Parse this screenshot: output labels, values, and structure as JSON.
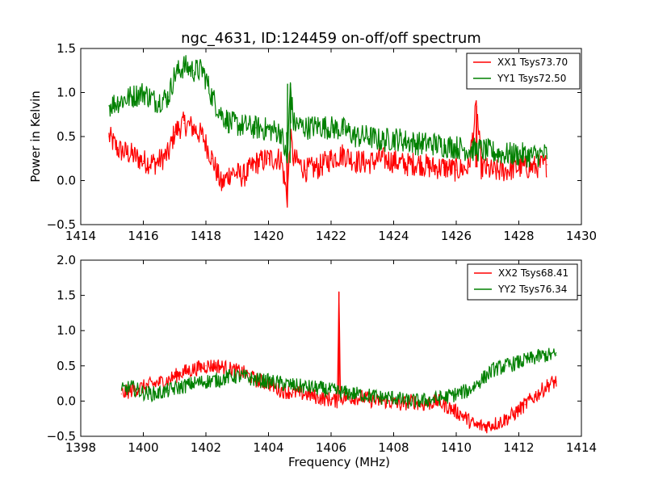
{
  "figure": {
    "title": "ngc_4631, ID:124459 on-off/off spectrum"
  },
  "chart_data": [
    {
      "type": "line",
      "title": "ngc_4631, ID:124459 on-off/off spectrum",
      "xlabel": "",
      "ylabel": "Power in Kelvin",
      "xlim": [
        1414,
        1430
      ],
      "ylim": [
        -0.5,
        1.5
      ],
      "xticks": [
        1414,
        1416,
        1418,
        1420,
        1422,
        1424,
        1426,
        1428,
        1430
      ],
      "yticks": [
        -0.5,
        0.0,
        0.5,
        1.0,
        1.5
      ],
      "xtick_labels": [
        "1414",
        "1416",
        "1418",
        "1420",
        "1422",
        "1424",
        "1426",
        "1428",
        "1430"
      ],
      "ytick_labels": [
        "−0.5",
        "0.0",
        "0.5",
        "1.0",
        "1.5"
      ],
      "legend_position": "top-right",
      "grid": false,
      "series": [
        {
          "name": "XX1 Tsys73.70",
          "color": "#ff0000",
          "x": [
            1414.9,
            1415.2,
            1415.6,
            1416.0,
            1416.4,
            1416.8,
            1417.0,
            1417.3,
            1417.6,
            1417.9,
            1418.2,
            1418.5,
            1418.8,
            1419.2,
            1419.6,
            1420.0,
            1420.4,
            1420.6,
            1420.7,
            1420.8,
            1421.2,
            1421.6,
            1422.0,
            1422.4,
            1422.8,
            1423.2,
            1423.6,
            1424.0,
            1424.4,
            1424.8,
            1425.2,
            1425.6,
            1426.0,
            1426.4,
            1426.65,
            1426.8,
            1427.2,
            1427.6,
            1428.0,
            1428.4,
            1428.9
          ],
          "y": [
            0.5,
            0.35,
            0.3,
            0.22,
            0.2,
            0.3,
            0.55,
            0.65,
            0.6,
            0.5,
            0.25,
            -0.05,
            0.1,
            0.05,
            0.2,
            0.25,
            0.25,
            -0.2,
            0.5,
            0.25,
            0.12,
            0.15,
            0.25,
            0.3,
            0.22,
            0.2,
            0.25,
            0.22,
            0.18,
            0.2,
            0.15,
            0.15,
            0.12,
            0.15,
            0.85,
            0.15,
            0.1,
            0.12,
            0.15,
            0.15,
            0.18
          ]
        },
        {
          "name": "YY1 Tsys72.50",
          "color": "#008000",
          "x": [
            1414.9,
            1415.2,
            1415.6,
            1416.0,
            1416.4,
            1416.8,
            1417.0,
            1417.3,
            1417.6,
            1417.9,
            1418.2,
            1418.5,
            1418.8,
            1419.2,
            1419.6,
            1420.0,
            1420.4,
            1420.6,
            1420.7,
            1420.8,
            1421.2,
            1421.6,
            1422.0,
            1422.4,
            1422.8,
            1423.2,
            1423.6,
            1424.0,
            1424.4,
            1424.8,
            1425.2,
            1425.6,
            1426.0,
            1426.4,
            1426.8,
            1427.2,
            1427.6,
            1428.0,
            1428.4,
            1428.9
          ],
          "y": [
            0.85,
            0.9,
            0.95,
            1.0,
            0.9,
            0.95,
            1.2,
            1.3,
            1.25,
            1.25,
            0.95,
            0.75,
            0.65,
            0.62,
            0.6,
            0.58,
            0.55,
            0.2,
            1.1,
            0.65,
            0.6,
            0.62,
            0.6,
            0.58,
            0.5,
            0.5,
            0.45,
            0.48,
            0.45,
            0.42,
            0.42,
            0.4,
            0.38,
            0.35,
            0.35,
            0.32,
            0.3,
            0.3,
            0.28,
            0.3
          ]
        }
      ]
    },
    {
      "type": "line",
      "title": "",
      "xlabel": "Frequency (MHz)",
      "ylabel": "",
      "xlim": [
        1398,
        1414
      ],
      "ylim": [
        -0.5,
        2.0
      ],
      "xticks": [
        1398,
        1400,
        1402,
        1404,
        1406,
        1408,
        1410,
        1412,
        1414
      ],
      "yticks": [
        -0.5,
        0.0,
        0.5,
        1.0,
        1.5,
        2.0
      ],
      "xtick_labels": [
        "1398",
        "1400",
        "1402",
        "1404",
        "1406",
        "1408",
        "1410",
        "1412",
        "1414"
      ],
      "ytick_labels": [
        "−0.5",
        "0.0",
        "0.5",
        "1.0",
        "1.5",
        "2.0"
      ],
      "legend_position": "top-right",
      "grid": false,
      "series": [
        {
          "name": "XX2 Tsys68.41",
          "color": "#ff0000",
          "x": [
            1399.3,
            1399.6,
            1400.0,
            1400.4,
            1400.8,
            1401.2,
            1401.6,
            1402.0,
            1402.4,
            1402.8,
            1403.2,
            1403.6,
            1404.0,
            1404.4,
            1404.8,
            1405.2,
            1405.6,
            1406.0,
            1406.2,
            1406.25,
            1406.3,
            1406.6,
            1407.0,
            1407.4,
            1407.8,
            1408.2,
            1408.6,
            1409.0,
            1409.4,
            1409.8,
            1410.2,
            1410.6,
            1411.0,
            1411.4,
            1411.8,
            1412.2,
            1412.6,
            1413.0,
            1413.2
          ],
          "y": [
            0.1,
            0.15,
            0.2,
            0.25,
            0.3,
            0.4,
            0.45,
            0.5,
            0.5,
            0.45,
            0.4,
            0.3,
            0.25,
            0.15,
            0.12,
            0.1,
            0.05,
            0.02,
            0.0,
            1.55,
            0.05,
            0.05,
            0.05,
            0.0,
            0.0,
            -0.05,
            0.0,
            -0.05,
            0.0,
            -0.1,
            -0.2,
            -0.35,
            -0.35,
            -0.3,
            -0.2,
            -0.05,
            0.1,
            0.25,
            0.28
          ]
        },
        {
          "name": "YY2 Tsys76.34",
          "color": "#008000",
          "x": [
            1399.3,
            1399.6,
            1400.0,
            1400.4,
            1400.8,
            1401.2,
            1401.6,
            1402.0,
            1402.4,
            1402.8,
            1403.2,
            1403.6,
            1404.0,
            1404.4,
            1404.8,
            1405.2,
            1405.6,
            1406.0,
            1406.4,
            1406.8,
            1407.2,
            1407.6,
            1408.0,
            1408.4,
            1408.8,
            1409.2,
            1409.6,
            1410.0,
            1410.4,
            1410.8,
            1411.2,
            1411.6,
            1412.0,
            1412.4,
            1412.8,
            1413.2
          ],
          "y": [
            0.15,
            0.2,
            0.12,
            0.1,
            0.15,
            0.2,
            0.25,
            0.28,
            0.3,
            0.35,
            0.35,
            0.3,
            0.28,
            0.25,
            0.22,
            0.2,
            0.18,
            0.15,
            0.12,
            0.1,
            0.08,
            0.05,
            0.05,
            0.0,
            0.0,
            0.02,
            0.05,
            0.1,
            0.15,
            0.3,
            0.45,
            0.5,
            0.55,
            0.6,
            0.65,
            0.65
          ]
        }
      ]
    }
  ]
}
